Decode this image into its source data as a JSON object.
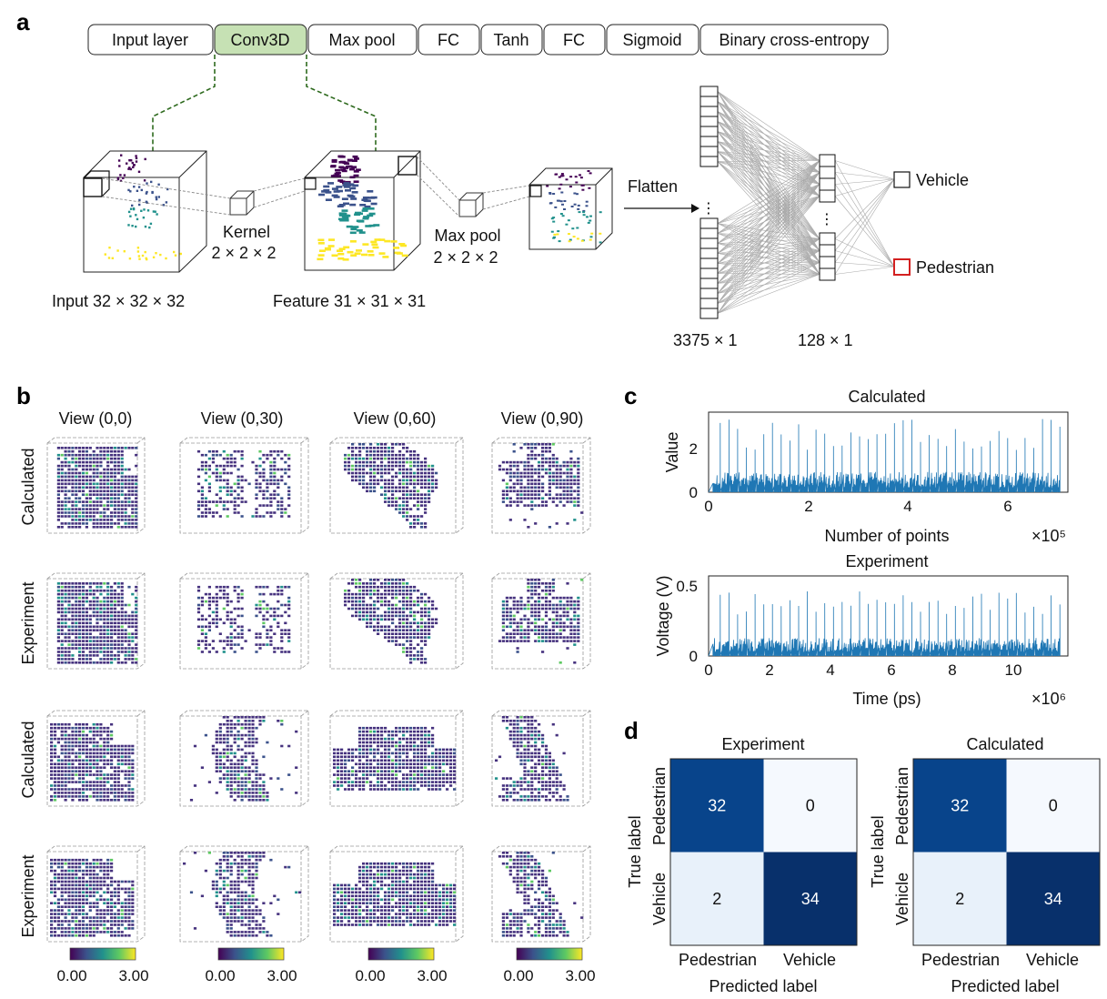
{
  "panels": {
    "a": "a",
    "b": "b",
    "c": "c",
    "d": "d"
  },
  "panel_a": {
    "layers": [
      "Input layer",
      "Conv3D",
      "Max pool",
      "FC",
      "Tanh",
      "FC",
      "Sigmoid",
      "Binary cross-entropy"
    ],
    "highlight_color": "#c6e1b4",
    "kernel_label": "Kernel",
    "kernel_size": "2 × 2 × 2",
    "maxpool_label": "Max pool",
    "maxpool_size": "2 × 2 × 2",
    "input_caption": "Input 32 × 32 × 32",
    "feature_caption": "Feature 31 × 31 × 31",
    "flatten_label": "Flatten",
    "flat_size": "3375 × 1",
    "hidden_size": "128 × 1",
    "output_vehicle": "Vehicle",
    "output_pedestrian": "Pedestrian",
    "selected_output_color": "#d32020"
  },
  "panel_b": {
    "views": [
      "View (0,0)",
      "View (0,30)",
      "View (0,60)",
      "View (0,90)"
    ],
    "rows": [
      "Calculated",
      "Experiment",
      "Calculated",
      "Experiment"
    ],
    "colorbar_min": "0.00",
    "colorbar_max": "3.00",
    "colormap": [
      "#440154",
      "#3b528b",
      "#21918c",
      "#5ec962",
      "#fde725"
    ]
  },
  "chart_data": [
    {
      "type": "line",
      "title": "Calculated",
      "xlabel": "Number of points",
      "x_multiplier": "×10⁵",
      "ylabel": "Value",
      "xlim": [
        0,
        7.2
      ],
      "ylim": [
        0,
        3.6
      ],
      "xticks": [
        "0",
        "2",
        "4",
        "6"
      ],
      "yticks": [
        "0",
        "2"
      ],
      "series": [
        {
          "color": "#1f77b4",
          "peak_count": 40,
          "peak_max": 3.3,
          "peak_min": 1.9,
          "baseline": 0.7
        }
      ]
    },
    {
      "type": "line",
      "title": "Experiment",
      "xlabel": "Time (ps)",
      "x_multiplier": "×10⁶",
      "ylabel": "Voltage (V)",
      "xlim": [
        0,
        11.8
      ],
      "ylim": [
        0,
        0.58
      ],
      "xticks": [
        "0",
        "2",
        "4",
        "6",
        "8",
        "10"
      ],
      "yticks": [
        "0",
        "0.5"
      ],
      "series": [
        {
          "color": "#1f77b4",
          "peak_count": 40,
          "peak_max": 0.47,
          "peak_min": 0.3,
          "baseline": 0.1
        }
      ]
    },
    {
      "type": "heatmap",
      "title": "Experiment",
      "xlabel": "Predicted label",
      "ylabel": "True label",
      "x_categories": [
        "Pedestrian",
        "Vehicle"
      ],
      "y_categories": [
        "Pedestrian",
        "Vehicle"
      ],
      "values": [
        [
          32,
          0
        ],
        [
          2,
          34
        ]
      ],
      "cell_colors": [
        [
          "#08448b",
          "#f5f9fe"
        ],
        [
          "#e8f1fa",
          "#08306b"
        ]
      ]
    },
    {
      "type": "heatmap",
      "title": "Calculated",
      "xlabel": "Predicted label",
      "ylabel": "True label",
      "x_categories": [
        "Pedestrian",
        "Vehicle"
      ],
      "y_categories": [
        "Pedestrian",
        "Vehicle"
      ],
      "values": [
        [
          32,
          0
        ],
        [
          2,
          34
        ]
      ],
      "cell_colors": [
        [
          "#08448b",
          "#f5f9fe"
        ],
        [
          "#e8f1fa",
          "#08306b"
        ]
      ]
    }
  ]
}
